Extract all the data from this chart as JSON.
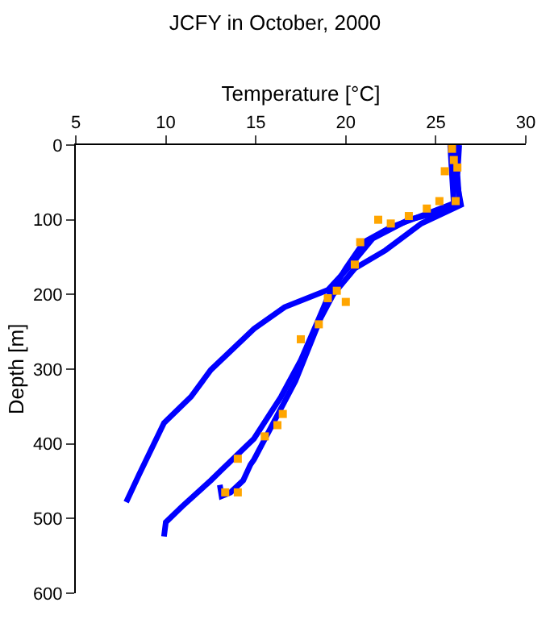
{
  "chart_data": {
    "type": "line",
    "title": "JCFY in October, 2000",
    "xlabel": "Temperature [°C]",
    "ylabel": "Depth [m]",
    "xlim": [
      5,
      30
    ],
    "xticks": [
      5,
      10,
      15,
      20,
      25,
      30
    ],
    "ylim": [
      600,
      0
    ],
    "yticks": [
      0,
      100,
      200,
      300,
      400,
      500,
      600
    ],
    "legend": false,
    "series": [
      {
        "color": "#0000ff",
        "marker": "none",
        "x": [
          26.3,
          26.2,
          26.3,
          25.5,
          23.5,
          21.5,
          20.3,
          19.0,
          16.6,
          14.9,
          12.5,
          11.4,
          9.9,
          8.5,
          7.8
        ],
        "values": [
          0,
          40,
          75,
          88,
          100,
          125,
          160,
          194,
          217,
          246,
          301,
          337,
          372,
          442,
          478
        ]
      },
      {
        "color": "#0000ff",
        "marker": "none",
        "x": [
          25.8,
          25.9,
          26.0,
          24.5,
          22.5,
          21.0,
          20.0,
          19.0,
          18.4,
          17.5,
          16.4,
          14.9,
          13.1,
          12.5,
          10.9,
          10.0,
          9.9
        ],
        "values": [
          0,
          40,
          78,
          92,
          110,
          130,
          165,
          204,
          238,
          288,
          337,
          393,
          435,
          449,
          484,
          505,
          524
        ]
      },
      {
        "color": "#0000ff",
        "marker": "none",
        "x": [
          26.0,
          26.1,
          26.4,
          24.2,
          22.2,
          20.5,
          19.3,
          18.6,
          17.2,
          14.9,
          14.7,
          14.3,
          13.6,
          13.1,
          13.0
        ],
        "values": [
          0,
          40,
          80,
          105,
          141,
          165,
          200,
          232,
          316,
          421,
          428,
          449,
          465,
          470,
          455
        ]
      },
      {
        "type": "scatter",
        "color": "#ffa500",
        "marker": "square",
        "x": [
          25.9,
          26.0,
          25.5,
          26.2,
          26.1,
          25.2,
          24.5,
          23.5,
          22.5,
          21.8,
          20.8,
          20.5,
          19.5,
          19.0,
          20.0,
          18.5,
          17.5,
          16.5,
          16.2,
          15.5,
          14.0,
          13.3,
          14.0
        ],
        "values": [
          5,
          20,
          35,
          30,
          75,
          75,
          85,
          95,
          105,
          100,
          130,
          160,
          195,
          205,
          210,
          240,
          260,
          360,
          375,
          390,
          420,
          465,
          465
        ]
      }
    ]
  }
}
